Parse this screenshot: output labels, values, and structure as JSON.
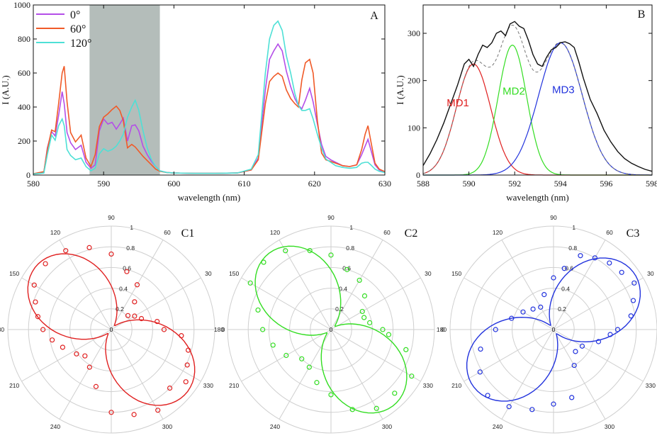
{
  "chart_data": [
    {
      "panel": "A",
      "type": "line",
      "xlabel": "wavelength (nm)",
      "ylabel": "I (A.U.)",
      "xlim": [
        580,
        630
      ],
      "ylim": [
        0,
        1000
      ],
      "xticks": [
        580,
        590,
        600,
        610,
        620,
        630
      ],
      "yticks": [
        0,
        200,
        400,
        600,
        800,
        1000
      ],
      "shaded_region": [
        588,
        598
      ],
      "legend_position": "top-left",
      "series": [
        {
          "name": "0°",
          "color": "#b44ee8",
          "x": [
            580,
            581.5,
            582,
            582.6,
            583.1,
            583.6,
            584.1,
            584.4,
            584.8,
            585.3,
            586,
            586.8,
            587.5,
            588.2,
            588.8,
            589.4,
            590,
            590.6,
            591.2,
            591.8,
            592.3,
            592.8,
            593.4,
            594,
            594.5,
            595,
            595.6,
            596.2,
            596.8,
            597.4,
            598,
            599,
            600,
            603,
            606,
            609,
            611,
            612,
            613,
            613.6,
            614.2,
            614.8,
            615.4,
            616,
            616.6,
            617.2,
            617.7,
            618.2,
            618.7,
            619.3,
            619.8,
            620.4,
            621,
            621.6,
            622.3,
            623,
            624,
            625,
            626,
            626.7,
            627.2,
            627.6,
            628,
            628.6,
            629.2,
            630
          ],
          "y": [
            8,
            15,
            160,
            255,
            230,
            350,
            490,
            420,
            250,
            190,
            150,
            175,
            75,
            40,
            60,
            260,
            330,
            300,
            310,
            270,
            300,
            335,
            200,
            290,
            295,
            260,
            170,
            120,
            80,
            50,
            25,
            15,
            12,
            10,
            10,
            12,
            30,
            100,
            500,
            680,
            730,
            770,
            730,
            610,
            520,
            450,
            410,
            390,
            440,
            510,
            430,
            300,
            180,
            110,
            90,
            75,
            55,
            50,
            60,
            120,
            170,
            210,
            150,
            60,
            30,
            20
          ]
        },
        {
          "name": "60°",
          "color": "#f05a28",
          "x": [
            580,
            581.5,
            582,
            582.6,
            583.1,
            583.6,
            584.1,
            584.4,
            584.8,
            585.3,
            586,
            586.8,
            587.5,
            588.2,
            588.8,
            589.4,
            590,
            590.6,
            591.2,
            591.8,
            592.3,
            592.8,
            593.4,
            594,
            594.5,
            595,
            595.6,
            596.2,
            596.8,
            597.4,
            598,
            599,
            600,
            603,
            606,
            609,
            611,
            612,
            613,
            613.6,
            614.2,
            614.8,
            615.4,
            616,
            616.6,
            617.2,
            617.7,
            618.2,
            618.7,
            619.3,
            619.8,
            620.4,
            621,
            621.6,
            622.3,
            623,
            624,
            625,
            626,
            626.7,
            627.2,
            627.6,
            628,
            628.6,
            629.2,
            630
          ],
          "y": [
            8,
            20,
            150,
            265,
            255,
            420,
            600,
            640,
            430,
            250,
            195,
            235,
            100,
            50,
            120,
            285,
            340,
            360,
            385,
            405,
            380,
            320,
            160,
            180,
            165,
            140,
            110,
            85,
            60,
            35,
            22,
            15,
            12,
            10,
            10,
            12,
            30,
            90,
            420,
            550,
            580,
            600,
            580,
            500,
            450,
            420,
            400,
            560,
            660,
            680,
            600,
            320,
            130,
            90,
            80,
            70,
            55,
            50,
            60,
            150,
            240,
            290,
            200,
            70,
            35,
            20
          ]
        },
        {
          "name": "120°",
          "color": "#4ee0d6",
          "x": [
            580,
            581.5,
            582,
            582.6,
            583.1,
            583.6,
            584.1,
            584.4,
            584.8,
            585.3,
            586,
            586.8,
            587.5,
            588.2,
            588.8,
            589.4,
            590,
            590.6,
            591.2,
            591.8,
            592.3,
            592.8,
            593.4,
            594,
            594.5,
            595,
            595.6,
            596.2,
            596.8,
            597.4,
            598,
            599,
            600,
            603,
            606,
            609,
            611,
            612,
            613,
            613.6,
            614.2,
            614.8,
            615.4,
            616,
            616.6,
            617.2,
            617.7,
            618.2,
            618.7,
            619.3,
            619.8,
            620.4,
            621,
            621.6,
            622.3,
            623,
            624,
            625,
            626,
            626.7,
            627.2,
            627.6,
            628,
            628.6,
            629.2,
            630
          ],
          "y": [
            6,
            12,
            120,
            235,
            205,
            290,
            330,
            290,
            150,
            115,
            90,
            100,
            50,
            25,
            40,
            125,
            155,
            140,
            150,
            170,
            200,
            240,
            340,
            400,
            440,
            380,
            260,
            160,
            90,
            50,
            25,
            15,
            12,
            10,
            10,
            12,
            35,
            120,
            600,
            800,
            880,
            905,
            850,
            700,
            600,
            480,
            410,
            380,
            380,
            390,
            330,
            240,
            160,
            95,
            75,
            55,
            45,
            40,
            45,
            70,
            75,
            75,
            60,
            35,
            22,
            15
          ]
        }
      ]
    },
    {
      "panel": "B",
      "type": "line",
      "xlabel": "wavelength (nm)",
      "ylabel": "I (A.U.)",
      "xlim": [
        588,
        598
      ],
      "ylim": [
        0,
        360
      ],
      "xticks": [
        588,
        590,
        592,
        594,
        596,
        598
      ],
      "yticks": [
        0,
        100,
        200,
        300
      ],
      "series": [
        {
          "name": "spectrum",
          "color": "#111111",
          "x": [
            588,
            588.3,
            588.6,
            588.9,
            589.2,
            589.5,
            589.8,
            590,
            590.2,
            590.4,
            590.6,
            590.8,
            591,
            591.2,
            591.4,
            591.6,
            591.8,
            592,
            592.2,
            592.4,
            592.6,
            592.8,
            593,
            593.2,
            593.4,
            593.6,
            593.8,
            594,
            594.2,
            594.4,
            594.6,
            594.8,
            595,
            595.3,
            595.6,
            595.9,
            596.2,
            596.5,
            596.8,
            597.1,
            597.4,
            597.7,
            598
          ],
          "y": [
            20,
            45,
            75,
            110,
            150,
            190,
            235,
            245,
            230,
            255,
            275,
            270,
            280,
            300,
            305,
            295,
            320,
            325,
            315,
            310,
            285,
            255,
            235,
            230,
            250,
            265,
            270,
            280,
            282,
            278,
            270,
            240,
            205,
            160,
            130,
            95,
            70,
            50,
            35,
            25,
            18,
            12,
            8
          ]
        },
        {
          "name": "MD1",
          "color": "#e02020",
          "gaussian": {
            "amplitude": 235,
            "center": 590.2,
            "sigma": 0.75
          }
        },
        {
          "name": "MD2",
          "color": "#33dd22",
          "gaussian": {
            "amplitude": 275,
            "center": 591.9,
            "sigma": 0.62
          }
        },
        {
          "name": "MD3",
          "color": "#2233dd",
          "gaussian": {
            "amplitude": 280,
            "center": 594.0,
            "sigma": 0.95
          }
        }
      ],
      "annotations": [
        "MD1",
        "MD2",
        "MD3"
      ]
    },
    {
      "panel": "C1",
      "type": "polar",
      "color": "#e02020",
      "rlim": [
        0,
        1
      ],
      "rticks": [
        0.2,
        0.4,
        0.6,
        0.8,
        1
      ],
      "angle_ticks": [
        0,
        30,
        60,
        90,
        120,
        150,
        180,
        210,
        240,
        270,
        300,
        330
      ],
      "fit_lobe_angle": 140,
      "fit_min": 0.05,
      "fit_max": 0.95,
      "points": [
        [
          0,
          0.51
        ],
        [
          10,
          0.45
        ],
        [
          20,
          0.31
        ],
        [
          30,
          0.26
        ],
        [
          40,
          0.21
        ],
        [
          50,
          0.35
        ],
        [
          60,
          0.5
        ],
        [
          75,
          0.58
        ],
        [
          90,
          0.73
        ],
        [
          105,
          0.82
        ],
        [
          120,
          0.88
        ],
        [
          135,
          0.9
        ],
        [
          150,
          0.86
        ],
        [
          160,
          0.78
        ],
        [
          170,
          0.72
        ],
        [
          180,
          0.66
        ],
        [
          190,
          0.58
        ],
        [
          200,
          0.5
        ],
        [
          215,
          0.41
        ],
        [
          225,
          0.36
        ],
        [
          240,
          0.42
        ],
        [
          255,
          0.57
        ],
        [
          270,
          0.8
        ],
        [
          285,
          0.85
        ],
        [
          300,
          0.9
        ],
        [
          315,
          0.8
        ],
        [
          325,
          0.88
        ],
        [
          335,
          0.81
        ],
        [
          345,
          0.77
        ],
        [
          355,
          0.68
        ]
      ]
    },
    {
      "panel": "C2",
      "type": "polar",
      "color": "#33dd22",
      "rlim": [
        0,
        1
      ],
      "rticks": [
        0.2,
        0.4,
        0.6,
        0.8,
        1
      ],
      "angle_ticks": [
        0,
        30,
        60,
        90,
        120,
        150,
        180,
        210,
        240,
        270,
        300,
        330
      ],
      "fit_lobe_angle": 130,
      "fit_min": 0.05,
      "fit_max": 0.95,
      "points": [
        [
          0,
          0.5
        ],
        [
          10,
          0.38
        ],
        [
          20,
          0.34
        ],
        [
          30,
          0.35
        ],
        [
          45,
          0.46
        ],
        [
          60,
          0.55
        ],
        [
          75,
          0.6
        ],
        [
          90,
          0.72
        ],
        [
          105,
          0.79
        ],
        [
          120,
          0.88
        ],
        [
          135,
          0.92
        ],
        [
          150,
          0.9
        ],
        [
          165,
          0.73
        ],
        [
          180,
          0.66
        ],
        [
          195,
          0.58
        ],
        [
          210,
          0.5
        ],
        [
          225,
          0.4
        ],
        [
          240,
          0.42
        ],
        [
          255,
          0.53
        ],
        [
          270,
          0.63
        ],
        [
          285,
          0.8
        ],
        [
          300,
          0.88
        ],
        [
          315,
          0.87
        ],
        [
          330,
          0.9
        ],
        [
          345,
          0.75
        ],
        [
          355,
          0.56
        ]
      ]
    },
    {
      "panel": "C3",
      "type": "polar",
      "color": "#2233dd",
      "rlim": [
        0,
        1
      ],
      "rticks": [
        0.2,
        0.4,
        0.6,
        0.8,
        1
      ],
      "angle_ticks": [
        0,
        30,
        60,
        90,
        120,
        150,
        180,
        210,
        240,
        270,
        300,
        330
      ],
      "fit_lobe_angle": 35,
      "fit_min": 0.05,
      "fit_max": 0.95,
      "points": [
        [
          0,
          0.62
        ],
        [
          10,
          0.76
        ],
        [
          20,
          0.82
        ],
        [
          30,
          0.9
        ],
        [
          40,
          0.86
        ],
        [
          50,
          0.84
        ],
        [
          60,
          0.8
        ],
        [
          70,
          0.76
        ],
        [
          80,
          0.6
        ],
        [
          90,
          0.5
        ],
        [
          105,
          0.35
        ],
        [
          120,
          0.25
        ],
        [
          135,
          0.28
        ],
        [
          150,
          0.34
        ],
        [
          165,
          0.42
        ],
        [
          180,
          0.56
        ],
        [
          195,
          0.73
        ],
        [
          210,
          0.82
        ],
        [
          225,
          0.9
        ],
        [
          240,
          0.86
        ],
        [
          255,
          0.8
        ],
        [
          270,
          0.72
        ],
        [
          285,
          0.68
        ],
        [
          300,
          0.4
        ],
        [
          315,
          0.3
        ],
        [
          330,
          0.32
        ],
        [
          345,
          0.45
        ],
        [
          355,
          0.55
        ]
      ]
    }
  ],
  "labels": {
    "panel_a": "A",
    "panel_b": "B",
    "panel_c1": "C1",
    "panel_c2": "C2",
    "panel_c3": "C3"
  }
}
